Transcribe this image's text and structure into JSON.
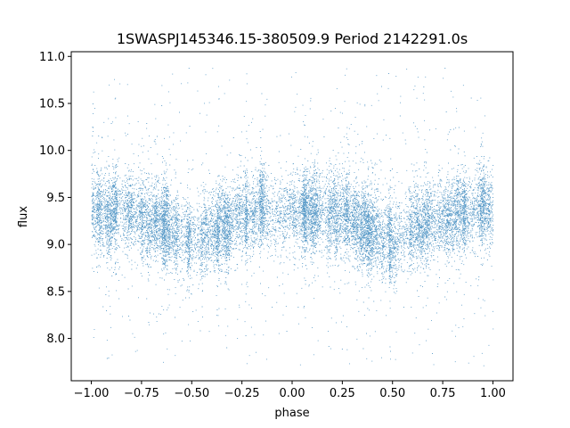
{
  "chart_data": {
    "type": "scatter",
    "title": "1SWASPJ145346.15-380509.9 Period 2142291.0s",
    "xlabel": "phase",
    "ylabel": "flux",
    "xlim": [
      -1.1,
      1.1
    ],
    "ylim": [
      7.55,
      11.05
    ],
    "xticks": [
      -1.0,
      -0.75,
      -0.5,
      -0.25,
      0.0,
      0.25,
      0.5,
      0.75,
      1.0
    ],
    "xtick_labels": [
      "−1.00",
      "−0.75",
      "−0.50",
      "−0.25",
      "0.00",
      "0.25",
      "0.50",
      "0.75",
      "1.00"
    ],
    "yticks": [
      8.0,
      8.5,
      9.0,
      9.5,
      10.0,
      10.5,
      11.0
    ],
    "ytick_labels": [
      "8.0",
      "8.5",
      "9.0",
      "9.5",
      "10.0",
      "10.5",
      "11.0"
    ],
    "grid": false,
    "marker_color": "#1f77b4",
    "x_range": [
      -1.0,
      1.0
    ],
    "y_core_range": [
      8.7,
      9.7
    ],
    "y_median": 9.25,
    "n_points_approx": 16000,
    "note": "Dense vertical streaks of points; light curve symmetric about phase 0 (folded twice)."
  }
}
